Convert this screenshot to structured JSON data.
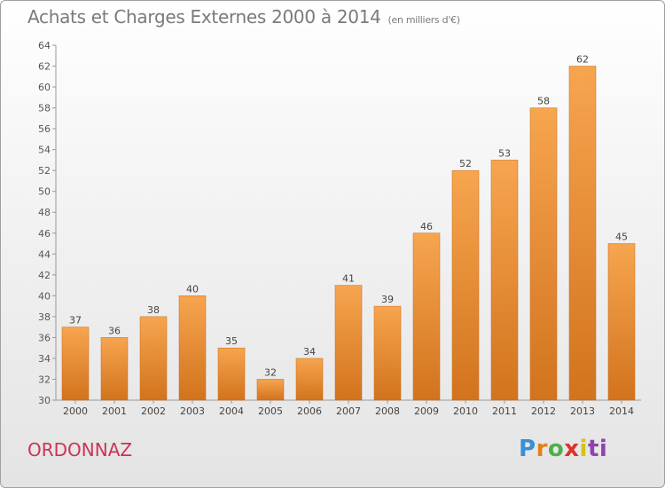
{
  "header": {
    "title": "Achats et Charges Externes 2000 à 2014",
    "subtitle": "(en milliers d'€)"
  },
  "footer": {
    "commune": "ORDONNAZ",
    "logo": [
      "P",
      "r",
      "o",
      "x",
      "i",
      "ti"
    ]
  },
  "colors": {
    "bar_light": "#f7a54f",
    "bar_dark": "#d2731d",
    "commune_text": "#cc3355",
    "text_gray": "#7a7a7a"
  },
  "chart_data": {
    "type": "bar",
    "categories": [
      "2000",
      "2001",
      "2002",
      "2003",
      "2004",
      "2005",
      "2006",
      "2007",
      "2008",
      "2009",
      "2010",
      "2011",
      "2012",
      "2013",
      "2014"
    ],
    "values": [
      37,
      36,
      38,
      40,
      35,
      32,
      34,
      41,
      39,
      46,
      52,
      53,
      58,
      62,
      45
    ],
    "title": "Achats et Charges Externes 2000 à 2014",
    "subtitle": "(en milliers d'€)",
    "xlabel": "",
    "ylabel": "",
    "ylim": [
      30,
      64
    ],
    "yticks": [
      30,
      32,
      34,
      36,
      38,
      40,
      42,
      44,
      46,
      48,
      50,
      52,
      54,
      56,
      58,
      60,
      62,
      64
    ],
    "grid": false,
    "legend": "none",
    "data_labels": true
  }
}
